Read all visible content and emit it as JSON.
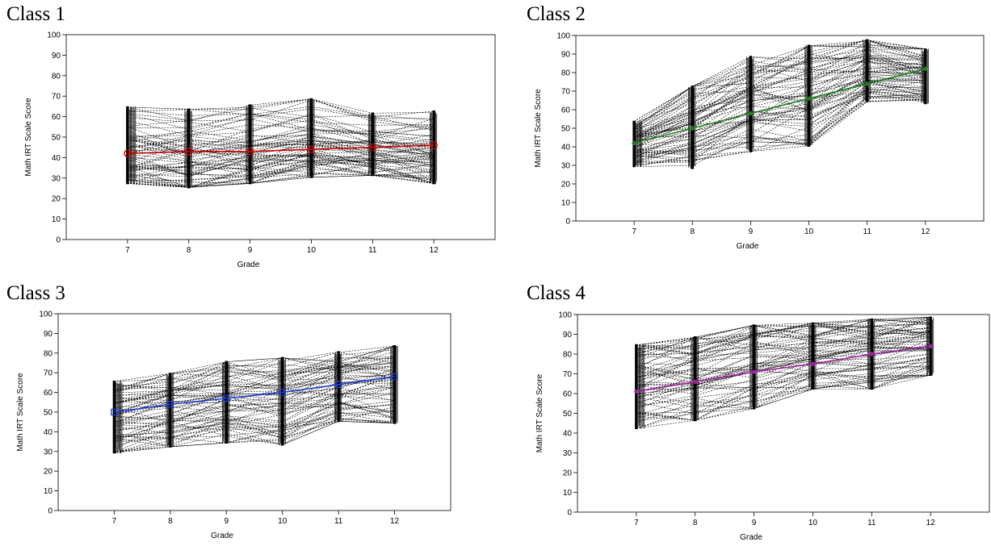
{
  "chart_data": [
    {
      "type": "line",
      "title": "Class 1",
      "xlabel": "Grade",
      "ylabel": "Math IRT Scale Score",
      "x": [
        7,
        8,
        9,
        10,
        11,
        12
      ],
      "xlim": [
        6,
        13
      ],
      "ylim": [
        0,
        100
      ],
      "yticks": [
        0,
        10,
        20,
        30,
        40,
        50,
        60,
        70,
        80,
        90,
        100
      ],
      "band_low": [
        27,
        25,
        27,
        30,
        31,
        27
      ],
      "band_high": [
        65,
        64,
        66,
        69,
        62,
        63
      ],
      "mean_trajectory": {
        "values": [
          42,
          43,
          43,
          44,
          45,
          46
        ],
        "color": "#cc0000",
        "marker": "circle"
      },
      "grid": false,
      "legend": "none"
    },
    {
      "type": "line",
      "title": "Class 2",
      "xlabel": "Grade",
      "ylabel": "Math IRT Scale Score",
      "x": [
        7,
        8,
        9,
        10,
        11,
        12
      ],
      "xlim": [
        6,
        13
      ],
      "ylim": [
        0,
        100
      ],
      "yticks": [
        0,
        10,
        20,
        30,
        40,
        50,
        60,
        70,
        80,
        90,
        100
      ],
      "band_low": [
        29,
        28,
        37,
        40,
        64,
        63
      ],
      "band_high": [
        54,
        73,
        89,
        95,
        98,
        93
      ],
      "mean_trajectory": {
        "values": [
          42,
          50,
          58,
          66,
          74,
          82
        ],
        "color": "#1a7f1a",
        "marker": "dot"
      },
      "grid": false,
      "legend": "none"
    },
    {
      "type": "line",
      "title": "Class 3",
      "xlabel": "Grade",
      "ylabel": "Math IRT Scale Score",
      "x": [
        7,
        8,
        9,
        10,
        11,
        12
      ],
      "xlim": [
        6,
        13
      ],
      "ylim": [
        0,
        100
      ],
      "yticks": [
        0,
        10,
        20,
        30,
        40,
        50,
        60,
        70,
        80,
        90,
        100
      ],
      "band_low": [
        29,
        32,
        34,
        33,
        45,
        44
      ],
      "band_high": [
        66,
        70,
        76,
        78,
        81,
        84
      ],
      "mean_trajectory": {
        "values": [
          50,
          54,
          57,
          60,
          64,
          68
        ],
        "color": "#1f3fcf",
        "marker": "square"
      },
      "grid": false,
      "legend": "none"
    },
    {
      "type": "line",
      "title": "Class 4",
      "xlabel": "Grade",
      "ylabel": "Math IRT Scale Score",
      "x": [
        7,
        8,
        9,
        10,
        11,
        12
      ],
      "xlim": [
        6,
        13
      ],
      "ylim": [
        0,
        100
      ],
      "yticks": [
        0,
        10,
        20,
        30,
        40,
        50,
        60,
        70,
        80,
        90,
        100
      ],
      "band_low": [
        42,
        46,
        52,
        62,
        62,
        69
      ],
      "band_high": [
        85,
        89,
        95,
        96,
        98,
        99
      ],
      "mean_trajectory": {
        "values": [
          61,
          66,
          71,
          75,
          80,
          84
        ],
        "color": "#a020a0",
        "marker": "dot"
      },
      "grid": false,
      "legend": "none"
    }
  ]
}
